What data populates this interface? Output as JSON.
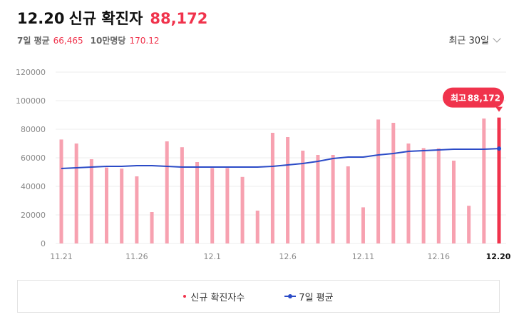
{
  "header": {
    "date": "12.20",
    "title": "신규 확진자",
    "total": "88,172"
  },
  "summary": {
    "avg7_label": "7일 평균",
    "avg7_value": "66,465",
    "per100k_label": "10만명당",
    "per100k_value": "170.12"
  },
  "period_selector": {
    "label": "최근 30일"
  },
  "legend": {
    "new_cases": "신규 확진자수",
    "avg7": "7일 평균"
  },
  "chart_data": {
    "type": "bar",
    "categories": [
      "11.21",
      "11.22",
      "11.23",
      "11.24",
      "11.25",
      "11.26",
      "11.27",
      "11.28",
      "11.29",
      "11.30",
      "12.1",
      "12.2",
      "12.3",
      "12.4",
      "12.5",
      "12.6",
      "12.7",
      "12.8",
      "12.9",
      "12.10",
      "12.11",
      "12.12",
      "12.13",
      "12.14",
      "12.15",
      "12.16",
      "12.17",
      "12.18",
      "12.19",
      "12.20"
    ],
    "x_tick_labels": [
      "11.21",
      "11.26",
      "12.1",
      "12.6",
      "12.11",
      "12.16",
      "12.20"
    ],
    "series": [
      {
        "name": "신규 확진자수",
        "type": "bar",
        "color": "#f7a1b0",
        "highlight_color": "#f0334c",
        "values": [
          72800,
          70000,
          59000,
          53200,
          52400,
          47000,
          22000,
          71500,
          67400,
          57000,
          52800,
          52800,
          46600,
          23000,
          77500,
          74500,
          65000,
          62000,
          62000,
          54000,
          25300,
          86800,
          84500,
          70000,
          66800,
          66600,
          58000,
          26400,
          87500,
          88172
        ]
      },
      {
        "name": "7일 평균",
        "type": "line",
        "color": "#2b4bc7",
        "values": [
          52500,
          53000,
          53500,
          54000,
          54000,
          54500,
          54500,
          54000,
          53500,
          53500,
          53500,
          53500,
          53500,
          53500,
          54000,
          55000,
          56000,
          57500,
          59500,
          60500,
          60500,
          62000,
          63000,
          64500,
          65000,
          65500,
          66000,
          66000,
          66000,
          66465
        ]
      }
    ],
    "ylim": [
      0,
      120000
    ],
    "y_ticks": [
      0,
      20000,
      40000,
      60000,
      80000,
      100000,
      120000
    ],
    "grid": true,
    "highlight_index": 29,
    "annotation": {
      "label": "최고",
      "value": "88,172",
      "color": "#f0334c"
    }
  }
}
